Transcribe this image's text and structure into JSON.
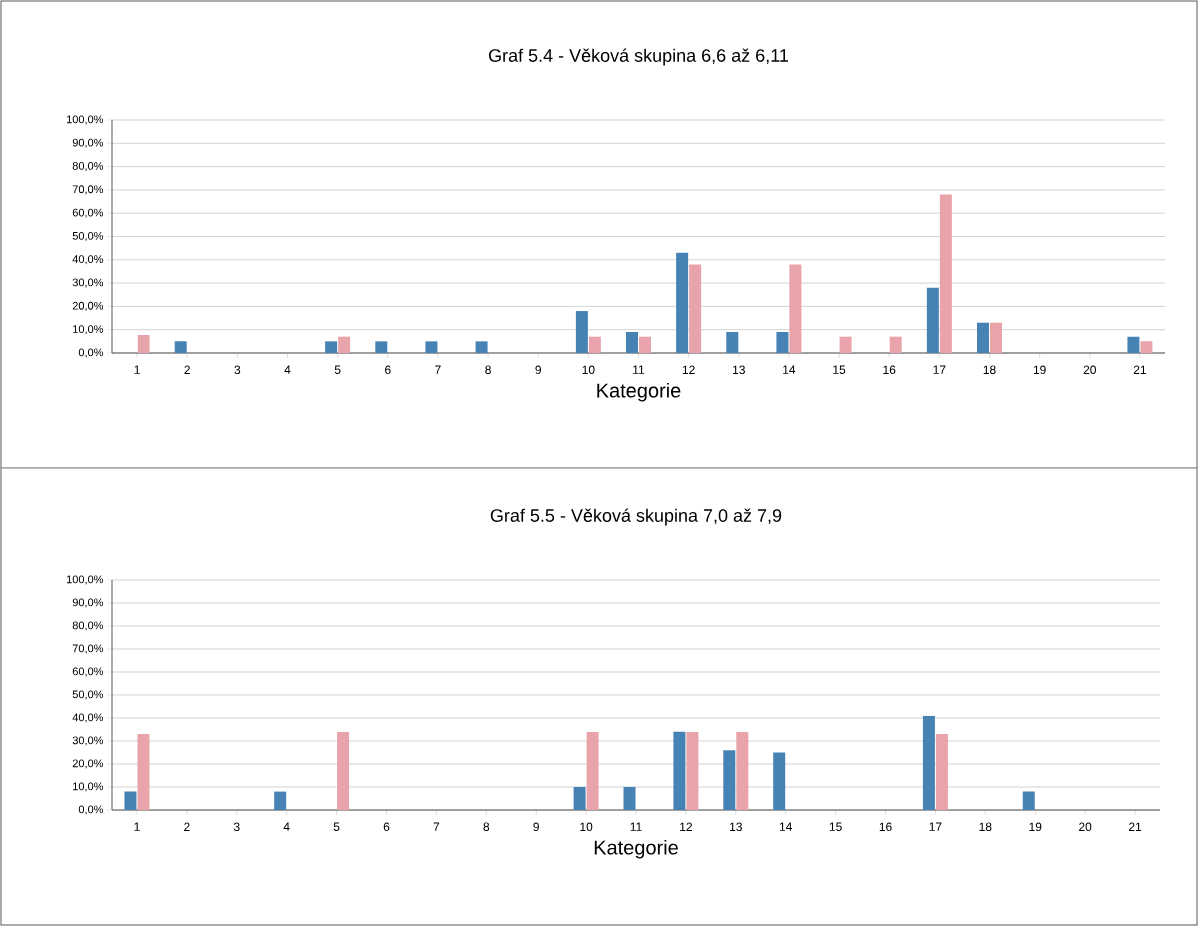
{
  "chart_data": [
    {
      "type": "bar",
      "title": "Graf 5.4 - Věková skupina 6,6 až 6,11",
      "xlabel": "Kategorie",
      "categories": [
        "1",
        "2",
        "3",
        "4",
        "5",
        "6",
        "7",
        "8",
        "9",
        "10",
        "11",
        "12",
        "13",
        "14",
        "15",
        "16",
        "17",
        "18",
        "19",
        "20",
        "21"
      ],
      "series": [
        {
          "color": "#4682b4",
          "values": [
            0,
            5,
            0,
            0,
            5,
            5,
            5,
            5,
            0,
            18,
            9,
            43,
            9,
            9,
            0,
            0,
            28,
            13,
            0,
            0,
            7
          ]
        },
        {
          "color": "#e9a3ab",
          "values": [
            7.7,
            0,
            0,
            0,
            7,
            0,
            0,
            0,
            0,
            7,
            7,
            38,
            0,
            38,
            7,
            7,
            68,
            13,
            0,
            0,
            5
          ]
        }
      ],
      "ylim": [
        0,
        100
      ],
      "yticks": [
        {
          "value": 0,
          "label": "0,0%"
        },
        {
          "value": 10,
          "label": "10,0%"
        },
        {
          "value": 20,
          "label": "20,0%"
        },
        {
          "value": 30,
          "label": "30,0%"
        },
        {
          "value": 40,
          "label": "40,0%"
        },
        {
          "value": 50,
          "label": "50,0%"
        },
        {
          "value": 60,
          "label": "60,0%"
        },
        {
          "value": 70,
          "label": "70,0%"
        },
        {
          "value": 80,
          "label": "80,0%"
        },
        {
          "value": 90,
          "label": "90,0%"
        },
        {
          "value": 100,
          "label": "100,0%"
        }
      ],
      "grid": "y"
    },
    {
      "type": "bar",
      "title": "Graf 5.5 - Věková skupina 7,0 až 7,9",
      "xlabel": "Kategorie",
      "categories": [
        "1",
        "2",
        "3",
        "4",
        "5",
        "6",
        "7",
        "8",
        "9",
        "10",
        "11",
        "12",
        "13",
        "14",
        "15",
        "16",
        "17",
        "18",
        "19",
        "20",
        "21"
      ],
      "series": [
        {
          "color": "#4682b4",
          "values": [
            8,
            0,
            0,
            8,
            0,
            0,
            0,
            0,
            0,
            10,
            10,
            34,
            26,
            25,
            0,
            0,
            41,
            0,
            8,
            0,
            0
          ]
        },
        {
          "color": "#e9a3ab",
          "values": [
            33,
            0,
            0,
            0,
            34,
            0,
            0,
            0,
            0,
            34,
            0,
            34,
            34,
            0,
            0,
            0,
            33,
            0,
            0,
            0,
            0
          ]
        }
      ],
      "ylim": [
        0,
        100
      ],
      "yticks": [
        {
          "value": 0,
          "label": "0,0%"
        },
        {
          "value": 10,
          "label": "10,0%"
        },
        {
          "value": 20,
          "label": "20,0%"
        },
        {
          "value": 30,
          "label": "30,0%"
        },
        {
          "value": 40,
          "label": "40,0%"
        },
        {
          "value": 50,
          "label": "50,0%"
        },
        {
          "value": 60,
          "label": "60,0%"
        },
        {
          "value": 70,
          "label": "70,0%"
        },
        {
          "value": 80,
          "label": "80,0%"
        },
        {
          "value": 90,
          "label": "90,0%"
        },
        {
          "value": 100,
          "label": "100,0%"
        }
      ],
      "grid": "y"
    }
  ]
}
